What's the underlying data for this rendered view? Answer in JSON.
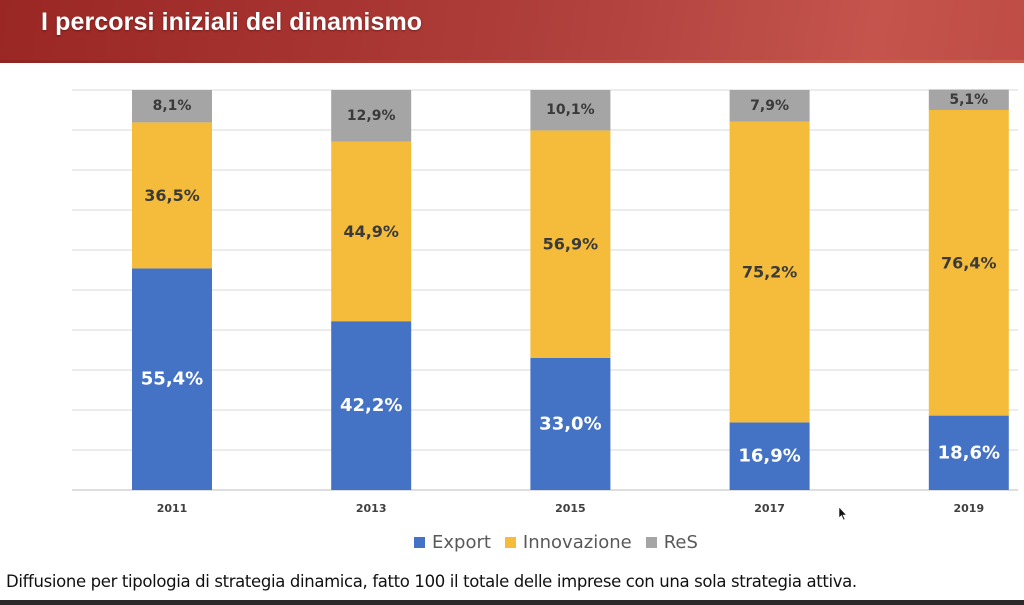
{
  "header": {
    "title": "I percorsi iniziali del dinamismo"
  },
  "caption": "Diffusione per tipologia di strategia dinamica, fatto 100 il totale delle imprese con una sola strategia attiva.",
  "colors": {
    "export": "#4472C4",
    "innovazione": "#F4BC3A",
    "res": "#A5A5A5",
    "header": "#A83532"
  },
  "chart_data": {
    "type": "bar",
    "stacked": true,
    "title": "",
    "xlabel": "",
    "ylabel": "",
    "ylim": [
      0,
      100
    ],
    "grid": true,
    "legend_position": "bottom",
    "categories": [
      "2011",
      "2013",
      "2015",
      "2017",
      "2019"
    ],
    "series": [
      {
        "name": "Export",
        "values": [
          55.4,
          42.2,
          33.0,
          16.9,
          18.6
        ],
        "labels": [
          "55,4%",
          "42,2%",
          "33,0%",
          "16,9%",
          "18,6%"
        ]
      },
      {
        "name": "Innovazione",
        "values": [
          36.5,
          44.9,
          56.9,
          75.2,
          76.4
        ],
        "labels": [
          "36,5%",
          "44,9%",
          "56,9%",
          "75,2%",
          "76,4%"
        ]
      },
      {
        "name": "ReS",
        "values": [
          8.1,
          12.9,
          10.1,
          7.9,
          5.1
        ],
        "labels": [
          "8,1%",
          "12,9%",
          "10,1%",
          "7,9%",
          "5,1%"
        ]
      }
    ]
  }
}
